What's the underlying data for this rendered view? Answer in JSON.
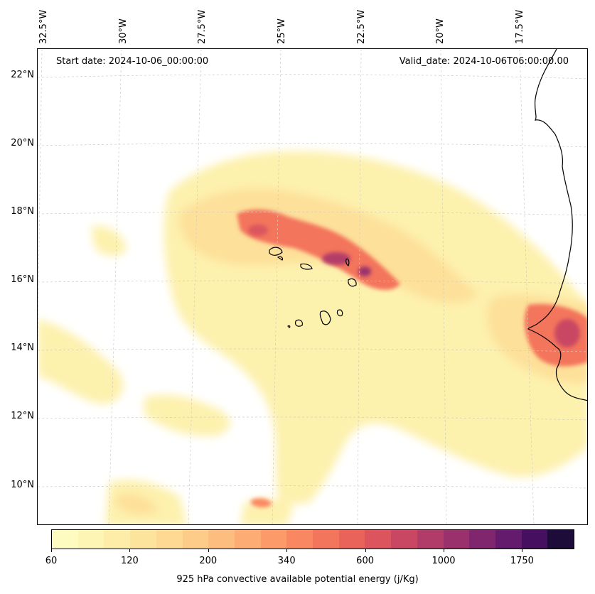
{
  "map": {
    "start_date": "Start date: 2024-10-06_00:00:00",
    "valid_date": "Valid_date: 2024-10-06T06:00:00.00",
    "lon_labels": [
      "32.5°W",
      "30°W",
      "27.5°W",
      "25°W",
      "22.5°W",
      "20°W",
      "17.5°W"
    ],
    "lat_labels": [
      "22°N",
      "20°N",
      "18°N",
      "16°N",
      "14°N",
      "12°N",
      "10°N"
    ],
    "field": "925 hPa convective available potential energy",
    "land_outline_color": "#000000",
    "gridline_color": "#cccccc"
  },
  "colorbar": {
    "label": "925 hPa convective available potential energy (j/Kg)",
    "tick_labels": [
      "60",
      "120",
      "200",
      "340",
      "600",
      "1000",
      "1750"
    ],
    "colors": [
      "#fdfbc0",
      "#fdf5b4",
      "#fdeda8",
      "#fde49d",
      "#fdd993",
      "#fdcc88",
      "#fdbd7e",
      "#fdac74",
      "#fc9a6a",
      "#f98862",
      "#f3755c",
      "#e9635a",
      "#db545e",
      "#c94763",
      "#b23c69",
      "#9a316d",
      "#80266f",
      "#641b6e",
      "#460f5f",
      "#1d0b3a"
    ]
  }
}
